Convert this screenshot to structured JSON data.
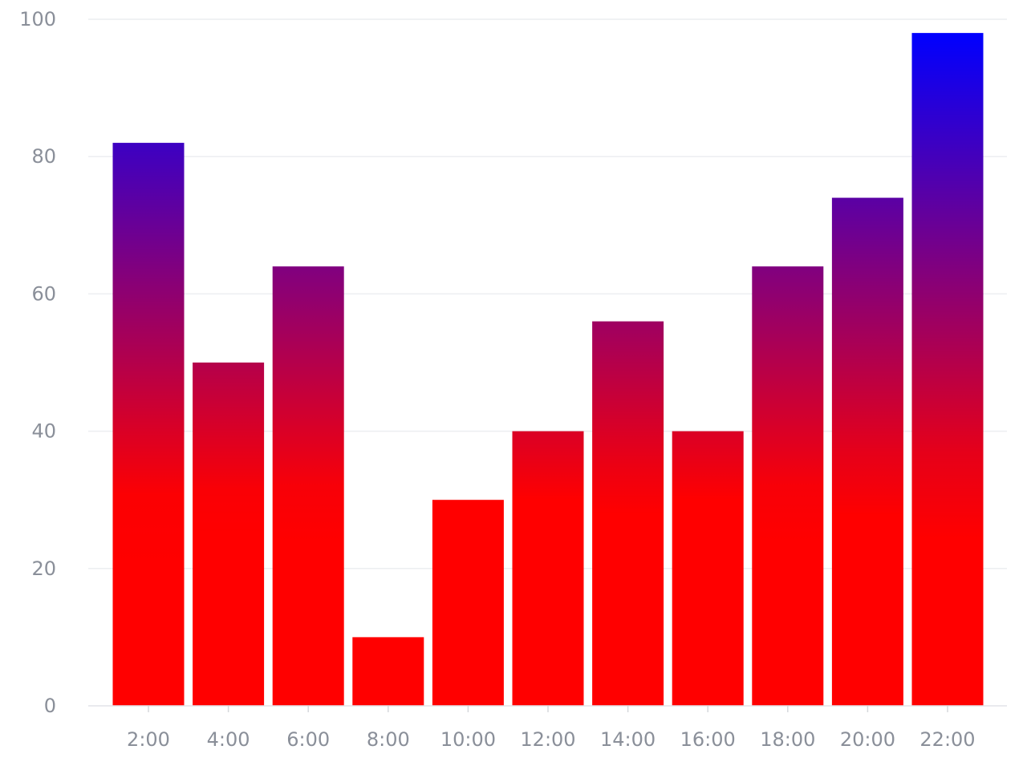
{
  "chart_data": {
    "type": "bar",
    "categories": [
      "2:00",
      "4:00",
      "6:00",
      "8:00",
      "10:00",
      "12:00",
      "14:00",
      "16:00",
      "18:00",
      "20:00",
      "22:00"
    ],
    "values": [
      82,
      50,
      64,
      10,
      30,
      40,
      56,
      40,
      64,
      74,
      98
    ],
    "ylim": [
      0,
      100
    ],
    "yticks": [
      0,
      20,
      40,
      60,
      80,
      100
    ],
    "grid": "horizontal",
    "color_scale": {
      "low": "#ff0000",
      "high": "#0000ff",
      "low_value": 30,
      "high_value": 98
    }
  }
}
